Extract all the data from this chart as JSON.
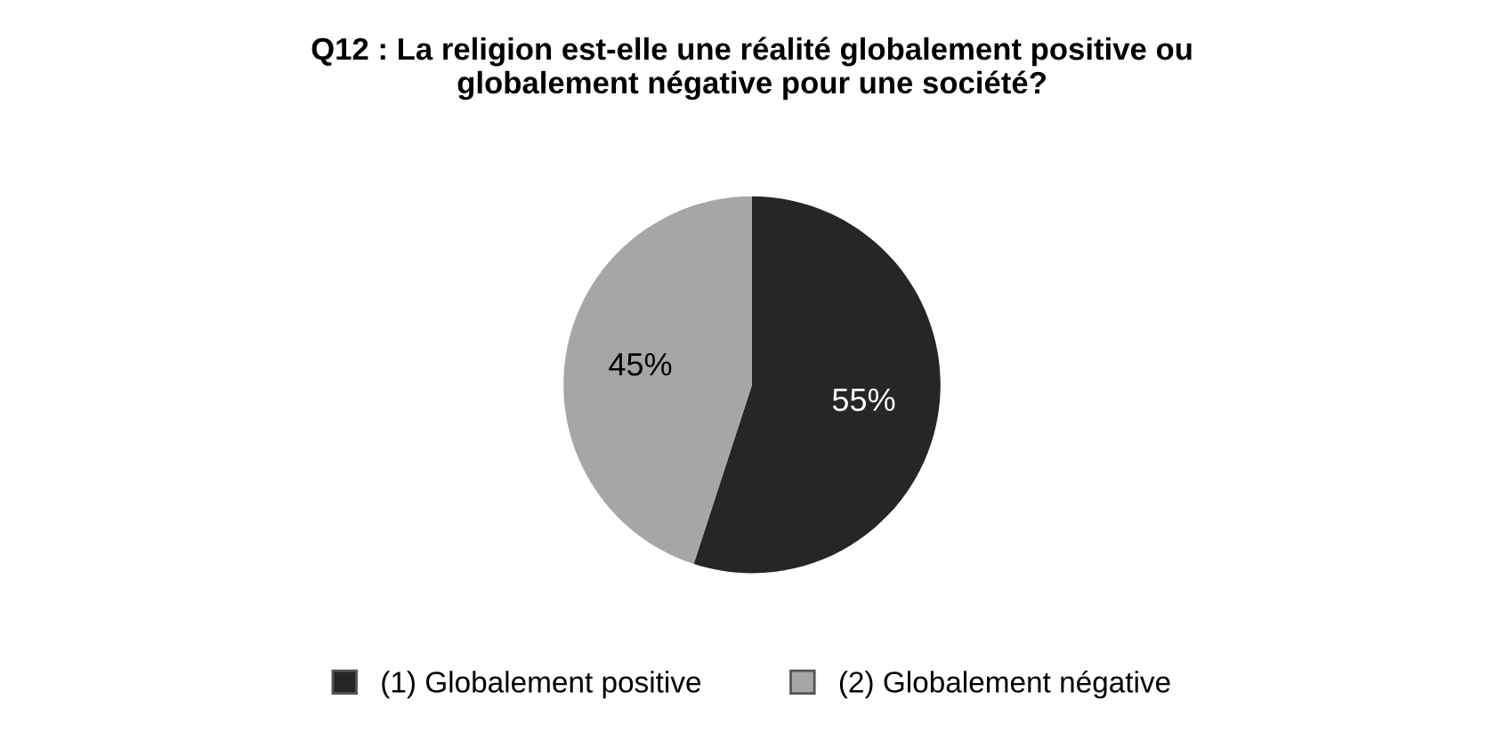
{
  "chart_data": {
    "type": "pie",
    "title": "Q12 : La religion est-elle une réalité globalement positive ou globalement négative pour une société?",
    "categories": [
      "(1) Globalement positive",
      "(2) Globalement négative"
    ],
    "values": [
      55,
      45
    ],
    "colors": [
      "#262626",
      "#a6a6a6"
    ],
    "value_labels": [
      "55%",
      "45%"
    ],
    "legend": "bottom"
  }
}
